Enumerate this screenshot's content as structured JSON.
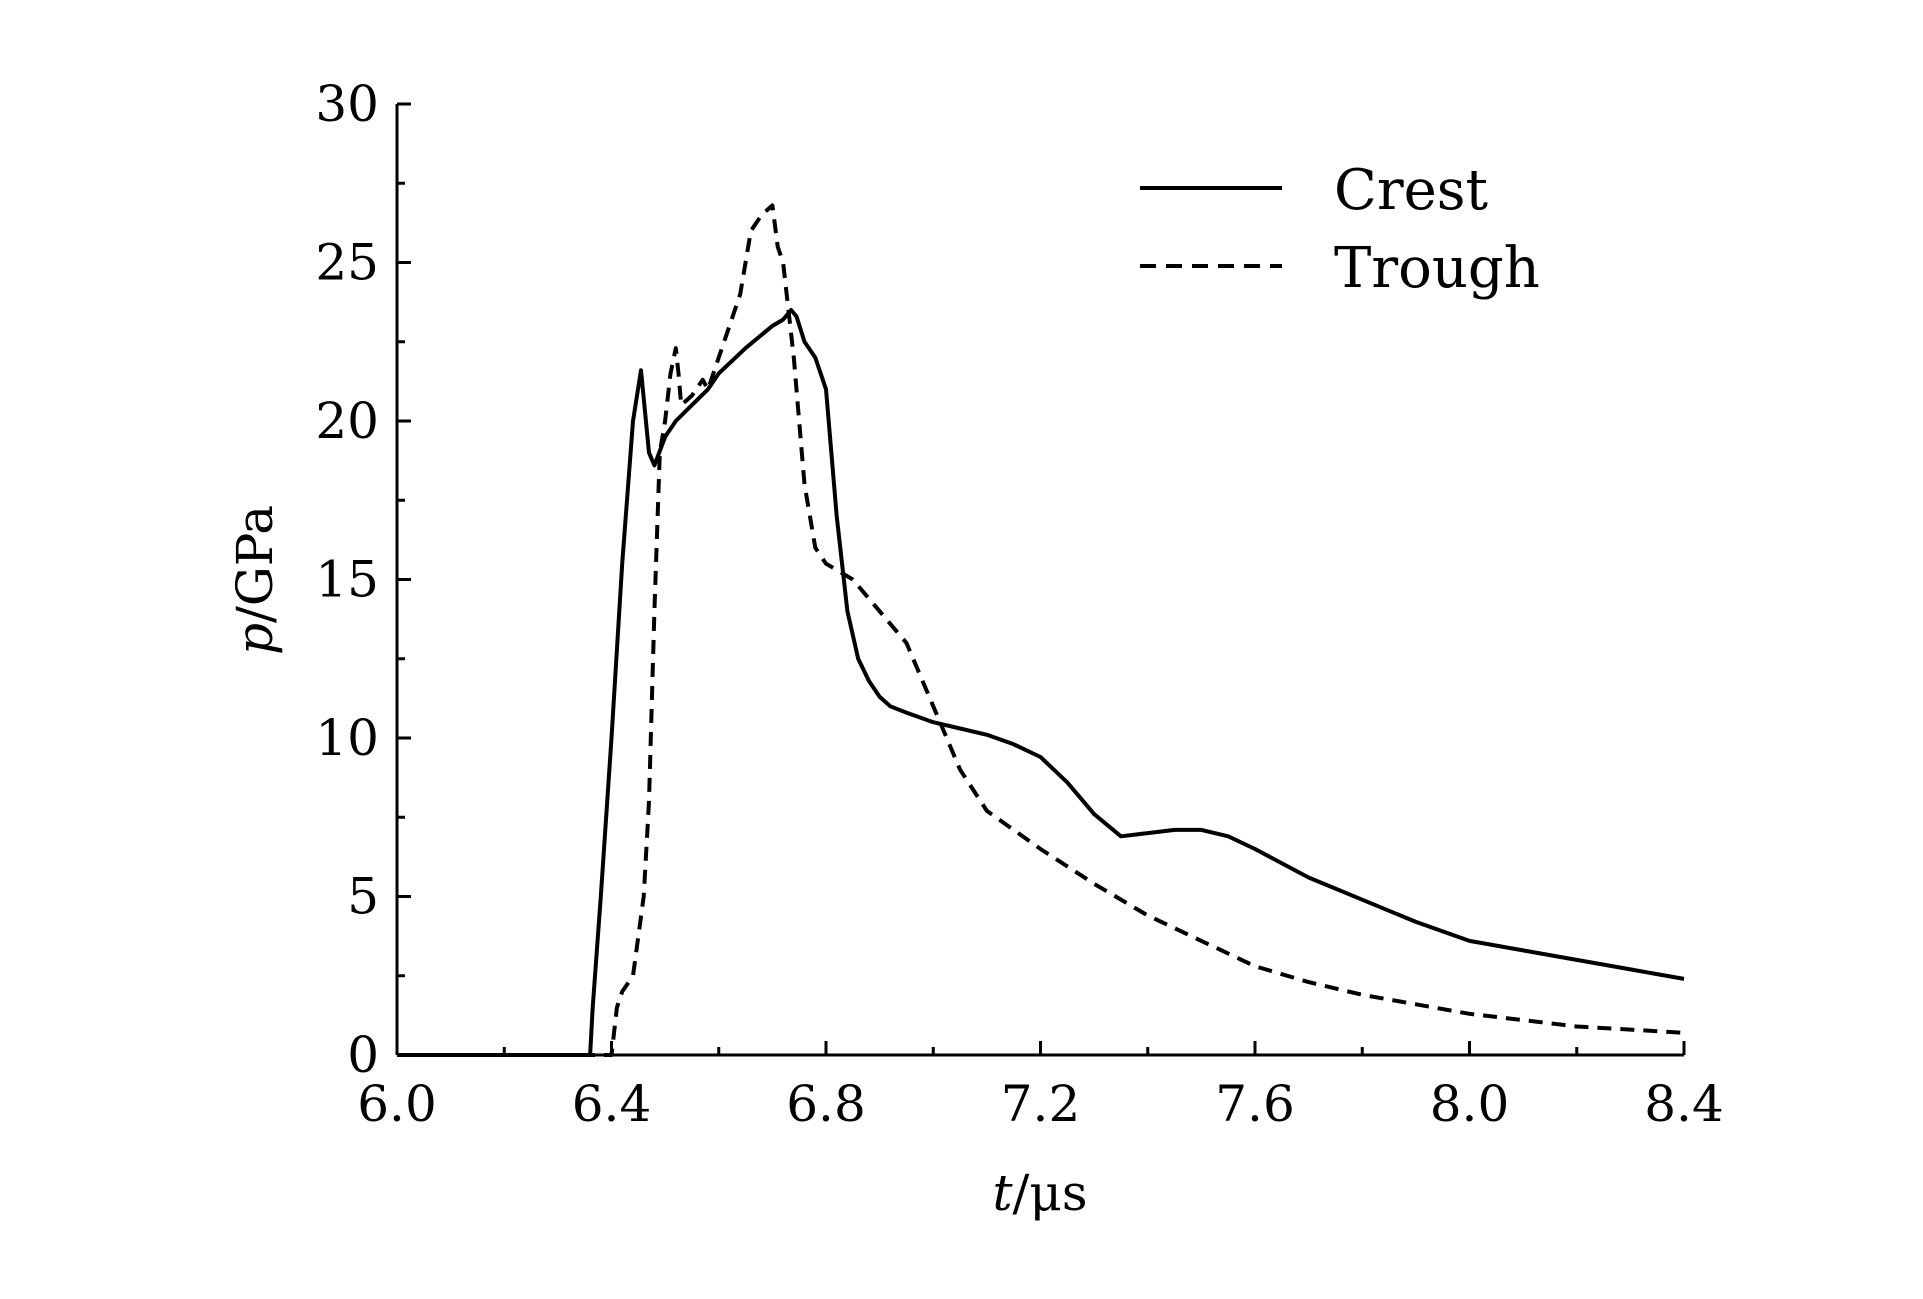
{
  "chart_data": {
    "type": "line",
    "title": "",
    "xlabel": {
      "var": "t",
      "unit": "/μs"
    },
    "ylabel": {
      "var": "p",
      "unit": "/GPa"
    },
    "xlim": [
      6.0,
      8.4
    ],
    "ylim": [
      0,
      30
    ],
    "xticks": [
      6.0,
      6.4,
      6.8,
      7.2,
      7.6,
      8.0,
      8.4
    ],
    "xtick_labels": [
      "6.0",
      "6.4",
      "6.8",
      "7.2",
      "7.6",
      "8.0",
      "8.4"
    ],
    "yticks": [
      0,
      5,
      10,
      15,
      20,
      25,
      30
    ],
    "ytick_labels": [
      "0",
      "5",
      "10",
      "15",
      "20",
      "25",
      "30"
    ],
    "grid": false,
    "legend_position": "top-right",
    "series": [
      {
        "name": "Crest",
        "style": "solid",
        "color": "#000000",
        "x": [
          6.0,
          6.36,
          6.365,
          6.38,
          6.4,
          6.42,
          6.44,
          6.455,
          6.47,
          6.48,
          6.5,
          6.52,
          6.55,
          6.58,
          6.6,
          6.65,
          6.7,
          6.72,
          6.735,
          6.745,
          6.76,
          6.78,
          6.8,
          6.82,
          6.84,
          6.86,
          6.88,
          6.9,
          6.92,
          6.95,
          7.0,
          7.05,
          7.1,
          7.15,
          7.2,
          7.25,
          7.3,
          7.35,
          7.4,
          7.45,
          7.5,
          7.55,
          7.6,
          7.7,
          7.8,
          7.9,
          8.0,
          8.1,
          8.2,
          8.3,
          8.4
        ],
        "y": [
          0,
          0,
          1.5,
          5.0,
          10.0,
          15.5,
          20.0,
          21.6,
          19.0,
          18.6,
          19.5,
          20.0,
          20.5,
          21.0,
          21.5,
          22.3,
          23.0,
          23.2,
          23.5,
          23.3,
          22.5,
          22.0,
          21.0,
          17.0,
          14.0,
          12.5,
          11.8,
          11.3,
          11.0,
          10.8,
          10.5,
          10.3,
          10.1,
          9.8,
          9.4,
          8.6,
          7.6,
          6.9,
          7.0,
          7.1,
          7.1,
          6.9,
          6.5,
          5.6,
          4.9,
          4.2,
          3.6,
          3.3,
          3.0,
          2.7,
          2.4
        ]
      },
      {
        "name": "Trough",
        "style": "dashed",
        "color": "#000000",
        "x": [
          6.0,
          6.4,
          6.41,
          6.42,
          6.44,
          6.46,
          6.47,
          6.48,
          6.49,
          6.5,
          6.51,
          6.52,
          6.525,
          6.53,
          6.55,
          6.57,
          6.58,
          6.6,
          6.62,
          6.64,
          6.66,
          6.68,
          6.7,
          6.71,
          6.72,
          6.74,
          6.76,
          6.78,
          6.8,
          6.85,
          6.9,
          6.95,
          7.0,
          7.05,
          7.1,
          7.2,
          7.3,
          7.4,
          7.5,
          7.6,
          7.7,
          7.8,
          7.9,
          8.0,
          8.1,
          8.2,
          8.3,
          8.4
        ],
        "y": [
          0,
          0,
          1.5,
          2.0,
          2.5,
          5.0,
          8.0,
          14.0,
          19.0,
          20.0,
          21.5,
          22.3,
          21.5,
          20.5,
          20.8,
          21.3,
          21.0,
          22.0,
          23.0,
          24.0,
          26.0,
          26.5,
          26.8,
          25.5,
          25.0,
          22.0,
          18.0,
          16.0,
          15.5,
          15.0,
          14.0,
          13.0,
          11.0,
          9.0,
          7.7,
          6.5,
          5.4,
          4.4,
          3.6,
          2.8,
          2.3,
          1.9,
          1.6,
          1.3,
          1.1,
          0.9,
          0.8,
          0.7
        ]
      }
    ]
  }
}
